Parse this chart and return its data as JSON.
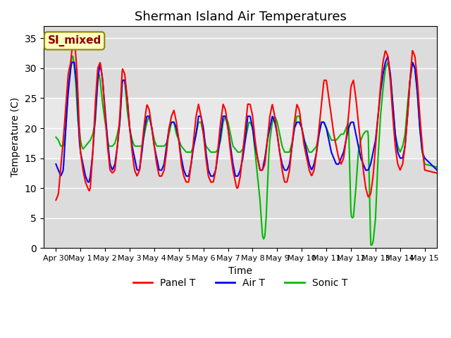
{
  "title": "Sherman Island Air Temperatures",
  "xlabel": "Time",
  "ylabel": "Temperature (C)",
  "ylim": [
    0,
    37
  ],
  "yticks": [
    0,
    5,
    10,
    15,
    20,
    25,
    30,
    35
  ],
  "xlim_start": -0.5,
  "xlim_end": 15.5,
  "xtick_labels": [
    "Apr 30",
    "May 1",
    "May 2",
    "May 3",
    "May 4",
    "May 5",
    "May 6",
    "May 7",
    "May 8",
    "May 9",
    "May 10",
    "May 11",
    "May 12",
    "May 13",
    "May 14",
    "May 15"
  ],
  "annotation_text": "SI_mixed",
  "annotation_color": "#8B0000",
  "annotation_bg": "#FFFFC0",
  "bg_band_y1": 15,
  "bg_band_y2": 25,
  "bg_band_color": "#E8E8E8",
  "panel_t_color": "#FF0000",
  "air_t_color": "#0000FF",
  "sonic_t_color": "#00BB00",
  "linewidth": 1.5,
  "panel_pts": [
    [
      0.0,
      8
    ],
    [
      0.1,
      9
    ],
    [
      0.3,
      18
    ],
    [
      0.5,
      29
    ],
    [
      0.6,
      31
    ],
    [
      0.65,
      33
    ],
    [
      0.75,
      35
    ],
    [
      0.85,
      30
    ],
    [
      0.95,
      20
    ],
    [
      1.0,
      16
    ],
    [
      1.1,
      13
    ],
    [
      1.2,
      11
    ],
    [
      1.3,
      10
    ],
    [
      1.35,
      9.5
    ],
    [
      1.4,
      10
    ],
    [
      1.5,
      16
    ],
    [
      1.6,
      24
    ],
    [
      1.7,
      30
    ],
    [
      1.8,
      31
    ],
    [
      1.9,
      28
    ],
    [
      2.0,
      22
    ],
    [
      2.1,
      17
    ],
    [
      2.15,
      15
    ],
    [
      2.2,
      13
    ],
    [
      2.3,
      12.5
    ],
    [
      2.4,
      13
    ],
    [
      2.5,
      17
    ],
    [
      2.6,
      22
    ],
    [
      2.7,
      30
    ],
    [
      2.8,
      29
    ],
    [
      2.9,
      25
    ],
    [
      3.0,
      20
    ],
    [
      3.1,
      16
    ],
    [
      3.2,
      13
    ],
    [
      3.3,
      12
    ],
    [
      3.4,
      13
    ],
    [
      3.5,
      17
    ],
    [
      3.6,
      21
    ],
    [
      3.7,
      24
    ],
    [
      3.8,
      23
    ],
    [
      3.9,
      20
    ],
    [
      4.0,
      17
    ],
    [
      4.1,
      14
    ],
    [
      4.2,
      12
    ],
    [
      4.3,
      12
    ],
    [
      4.4,
      13
    ],
    [
      4.5,
      16
    ],
    [
      4.6,
      20
    ],
    [
      4.7,
      22
    ],
    [
      4.8,
      23
    ],
    [
      4.9,
      21
    ],
    [
      5.0,
      18
    ],
    [
      5.1,
      14
    ],
    [
      5.2,
      12
    ],
    [
      5.3,
      11
    ],
    [
      5.4,
      11
    ],
    [
      5.5,
      14
    ],
    [
      5.6,
      18
    ],
    [
      5.7,
      22
    ],
    [
      5.8,
      24
    ],
    [
      5.9,
      22
    ],
    [
      6.0,
      19
    ],
    [
      6.1,
      15
    ],
    [
      6.2,
      12
    ],
    [
      6.3,
      11
    ],
    [
      6.4,
      11
    ],
    [
      6.5,
      13
    ],
    [
      6.6,
      17
    ],
    [
      6.7,
      21
    ],
    [
      6.8,
      24
    ],
    [
      6.9,
      23
    ],
    [
      7.0,
      20
    ],
    [
      7.1,
      16
    ],
    [
      7.2,
      13
    ],
    [
      7.3,
      11
    ],
    [
      7.35,
      10
    ],
    [
      7.4,
      10
    ],
    [
      7.5,
      12
    ],
    [
      7.6,
      16
    ],
    [
      7.7,
      20
    ],
    [
      7.8,
      24
    ],
    [
      7.9,
      24
    ],
    [
      8.0,
      22
    ],
    [
      8.1,
      18
    ],
    [
      8.2,
      15
    ],
    [
      8.3,
      13
    ],
    [
      8.4,
      13
    ],
    [
      8.5,
      14
    ],
    [
      8.6,
      18
    ],
    [
      8.7,
      22
    ],
    [
      8.8,
      24
    ],
    [
      8.9,
      22
    ],
    [
      9.0,
      19
    ],
    [
      9.1,
      16
    ],
    [
      9.2,
      13
    ],
    [
      9.3,
      11
    ],
    [
      9.4,
      11
    ],
    [
      9.5,
      13
    ],
    [
      9.6,
      17
    ],
    [
      9.7,
      21
    ],
    [
      9.8,
      24
    ],
    [
      9.9,
      23
    ],
    [
      10.0,
      20
    ],
    [
      10.1,
      17
    ],
    [
      10.2,
      15
    ],
    [
      10.3,
      13
    ],
    [
      10.4,
      12
    ],
    [
      10.5,
      13
    ],
    [
      10.6,
      16
    ],
    [
      10.7,
      20
    ],
    [
      10.8,
      24
    ],
    [
      10.9,
      28
    ],
    [
      11.0,
      28
    ],
    [
      11.1,
      25
    ],
    [
      11.2,
      22
    ],
    [
      11.3,
      19
    ],
    [
      11.4,
      17
    ],
    [
      11.5,
      15
    ],
    [
      11.6,
      14
    ],
    [
      11.7,
      15
    ],
    [
      11.8,
      18
    ],
    [
      11.9,
      22
    ],
    [
      12.0,
      27
    ],
    [
      12.1,
      28
    ],
    [
      12.2,
      25
    ],
    [
      12.3,
      21
    ],
    [
      12.4,
      17
    ],
    [
      12.5,
      13
    ],
    [
      12.6,
      10
    ],
    [
      12.7,
      8.5
    ],
    [
      12.8,
      9
    ],
    [
      12.9,
      12
    ],
    [
      13.0,
      17
    ],
    [
      13.1,
      22
    ],
    [
      13.2,
      27
    ],
    [
      13.3,
      31
    ],
    [
      13.4,
      33
    ],
    [
      13.5,
      32
    ],
    [
      13.6,
      28
    ],
    [
      13.7,
      22
    ],
    [
      13.8,
      17
    ],
    [
      13.9,
      14
    ],
    [
      14.0,
      13
    ],
    [
      14.1,
      14
    ],
    [
      14.2,
      17
    ],
    [
      14.3,
      22
    ],
    [
      14.4,
      28
    ],
    [
      14.5,
      33
    ],
    [
      14.6,
      32
    ],
    [
      14.7,
      28
    ],
    [
      14.8,
      22
    ],
    [
      14.9,
      17
    ],
    [
      15.0,
      13
    ],
    [
      15.5,
      12.5
    ]
  ],
  "air_pts": [
    [
      0.0,
      14
    ],
    [
      0.1,
      13
    ],
    [
      0.2,
      12
    ],
    [
      0.3,
      13
    ],
    [
      0.4,
      20
    ],
    [
      0.5,
      26
    ],
    [
      0.6,
      30
    ],
    [
      0.65,
      31
    ],
    [
      0.75,
      31
    ],
    [
      0.85,
      27
    ],
    [
      0.95,
      18
    ],
    [
      1.0,
      16
    ],
    [
      1.1,
      14
    ],
    [
      1.2,
      12
    ],
    [
      1.3,
      11
    ],
    [
      1.35,
      11
    ],
    [
      1.4,
      12
    ],
    [
      1.5,
      16
    ],
    [
      1.6,
      22
    ],
    [
      1.7,
      28
    ],
    [
      1.8,
      31
    ],
    [
      1.9,
      28
    ],
    [
      2.0,
      23
    ],
    [
      2.1,
      18
    ],
    [
      2.15,
      16
    ],
    [
      2.2,
      14
    ],
    [
      2.3,
      13
    ],
    [
      2.4,
      14
    ],
    [
      2.5,
      17
    ],
    [
      2.6,
      21
    ],
    [
      2.7,
      28
    ],
    [
      2.8,
      28
    ],
    [
      2.9,
      25
    ],
    [
      3.0,
      20
    ],
    [
      3.1,
      17
    ],
    [
      3.2,
      15
    ],
    [
      3.3,
      13
    ],
    [
      3.4,
      13
    ],
    [
      3.5,
      16
    ],
    [
      3.6,
      20
    ],
    [
      3.7,
      22
    ],
    [
      3.8,
      22
    ],
    [
      3.9,
      20
    ],
    [
      4.0,
      17
    ],
    [
      4.1,
      15
    ],
    [
      4.2,
      13
    ],
    [
      4.3,
      13
    ],
    [
      4.4,
      14
    ],
    [
      4.5,
      17
    ],
    [
      4.6,
      20
    ],
    [
      4.7,
      21
    ],
    [
      4.8,
      21
    ],
    [
      4.9,
      20
    ],
    [
      5.0,
      18
    ],
    [
      5.1,
      15
    ],
    [
      5.2,
      13
    ],
    [
      5.3,
      12
    ],
    [
      5.4,
      12
    ],
    [
      5.5,
      14
    ],
    [
      5.6,
      17
    ],
    [
      5.7,
      19
    ],
    [
      5.8,
      22
    ],
    [
      5.9,
      22
    ],
    [
      6.0,
      20
    ],
    [
      6.1,
      16
    ],
    [
      6.2,
      13
    ],
    [
      6.3,
      12
    ],
    [
      6.4,
      12
    ],
    [
      6.5,
      13
    ],
    [
      6.6,
      16
    ],
    [
      6.7,
      19
    ],
    [
      6.8,
      22
    ],
    [
      6.9,
      22
    ],
    [
      7.0,
      20
    ],
    [
      7.1,
      17
    ],
    [
      7.2,
      14
    ],
    [
      7.3,
      12
    ],
    [
      7.35,
      12
    ],
    [
      7.4,
      12
    ],
    [
      7.5,
      13
    ],
    [
      7.6,
      15
    ],
    [
      7.7,
      18
    ],
    [
      7.8,
      22
    ],
    [
      7.9,
      22
    ],
    [
      8.0,
      20
    ],
    [
      8.1,
      17
    ],
    [
      8.2,
      15
    ],
    [
      8.3,
      13
    ],
    [
      8.4,
      13
    ],
    [
      8.5,
      15
    ],
    [
      8.6,
      18
    ],
    [
      8.7,
      20
    ],
    [
      8.8,
      22
    ],
    [
      8.9,
      21
    ],
    [
      9.0,
      19
    ],
    [
      9.1,
      16
    ],
    [
      9.2,
      14
    ],
    [
      9.3,
      13
    ],
    [
      9.4,
      13
    ],
    [
      9.5,
      14
    ],
    [
      9.6,
      17
    ],
    [
      9.7,
      20
    ],
    [
      9.8,
      21
    ],
    [
      9.9,
      21
    ],
    [
      10.0,
      20
    ],
    [
      10.1,
      18
    ],
    [
      10.2,
      16
    ],
    [
      10.3,
      14
    ],
    [
      10.4,
      13
    ],
    [
      10.5,
      14
    ],
    [
      10.6,
      16
    ],
    [
      10.7,
      19
    ],
    [
      10.8,
      21
    ],
    [
      10.9,
      21
    ],
    [
      11.0,
      20
    ],
    [
      11.1,
      18
    ],
    [
      11.2,
      16
    ],
    [
      11.3,
      15
    ],
    [
      11.4,
      14
    ],
    [
      11.5,
      14
    ],
    [
      11.6,
      15
    ],
    [
      11.7,
      16
    ],
    [
      11.8,
      18
    ],
    [
      11.9,
      20
    ],
    [
      12.0,
      21
    ],
    [
      12.1,
      21
    ],
    [
      12.2,
      19
    ],
    [
      12.3,
      17
    ],
    [
      12.4,
      15
    ],
    [
      12.5,
      14
    ],
    [
      12.6,
      13
    ],
    [
      12.7,
      13
    ],
    [
      12.8,
      14
    ],
    [
      12.9,
      16
    ],
    [
      13.0,
      18
    ],
    [
      13.1,
      22
    ],
    [
      13.2,
      26
    ],
    [
      13.3,
      29
    ],
    [
      13.4,
      31
    ],
    [
      13.5,
      32
    ],
    [
      13.6,
      29
    ],
    [
      13.7,
      24
    ],
    [
      13.8,
      19
    ],
    [
      13.9,
      16
    ],
    [
      14.0,
      15
    ],
    [
      14.1,
      15
    ],
    [
      14.2,
      17
    ],
    [
      14.3,
      22
    ],
    [
      14.4,
      28
    ],
    [
      14.5,
      31
    ],
    [
      14.6,
      30
    ],
    [
      14.7,
      26
    ],
    [
      14.8,
      20
    ],
    [
      14.9,
      16
    ],
    [
      15.0,
      15
    ],
    [
      15.5,
      13
    ]
  ],
  "sonic_pts": [
    [
      0.0,
      18.5
    ],
    [
      0.1,
      18
    ],
    [
      0.2,
      17
    ],
    [
      0.3,
      17
    ],
    [
      0.35,
      18
    ],
    [
      0.4,
      20
    ],
    [
      0.5,
      27
    ],
    [
      0.6,
      30
    ],
    [
      0.65,
      32
    ],
    [
      0.7,
      32
    ],
    [
      0.8,
      28
    ],
    [
      0.9,
      21
    ],
    [
      0.95,
      20
    ],
    [
      1.0,
      18
    ],
    [
      1.05,
      17
    ],
    [
      1.1,
      16.5
    ],
    [
      1.2,
      17
    ],
    [
      1.3,
      17.5
    ],
    [
      1.4,
      18
    ],
    [
      1.5,
      19
    ],
    [
      1.6,
      21
    ],
    [
      1.7,
      28
    ],
    [
      1.75,
      29
    ],
    [
      1.8,
      28
    ],
    [
      1.9,
      24
    ],
    [
      2.0,
      21
    ],
    [
      2.05,
      20
    ],
    [
      2.1,
      18
    ],
    [
      2.15,
      17
    ],
    [
      2.2,
      17
    ],
    [
      2.3,
      17
    ],
    [
      2.4,
      17.5
    ],
    [
      2.5,
      19
    ],
    [
      2.6,
      21
    ],
    [
      2.7,
      28
    ],
    [
      2.8,
      28
    ],
    [
      2.9,
      23
    ],
    [
      3.0,
      20
    ],
    [
      3.1,
      18
    ],
    [
      3.2,
      17
    ],
    [
      3.3,
      17
    ],
    [
      3.4,
      17
    ],
    [
      3.5,
      17
    ],
    [
      3.6,
      19
    ],
    [
      3.7,
      21
    ],
    [
      3.8,
      22
    ],
    [
      3.9,
      20
    ],
    [
      4.0,
      18
    ],
    [
      4.1,
      17
    ],
    [
      4.2,
      17
    ],
    [
      4.3,
      17
    ],
    [
      4.4,
      17
    ],
    [
      4.5,
      17.5
    ],
    [
      4.6,
      19
    ],
    [
      4.7,
      21
    ],
    [
      4.8,
      21
    ],
    [
      4.9,
      19
    ],
    [
      5.0,
      18
    ],
    [
      5.1,
      17
    ],
    [
      5.2,
      16.5
    ],
    [
      5.3,
      16
    ],
    [
      5.4,
      16
    ],
    [
      5.5,
      16
    ],
    [
      5.6,
      17
    ],
    [
      5.7,
      19
    ],
    [
      5.8,
      21
    ],
    [
      5.9,
      21
    ],
    [
      6.0,
      19
    ],
    [
      6.1,
      17
    ],
    [
      6.2,
      16.5
    ],
    [
      6.3,
      16
    ],
    [
      6.4,
      16
    ],
    [
      6.5,
      16
    ],
    [
      6.6,
      16.5
    ],
    [
      6.7,
      18
    ],
    [
      6.8,
      21
    ],
    [
      6.9,
      22
    ],
    [
      7.0,
      21
    ],
    [
      7.1,
      19
    ],
    [
      7.2,
      17
    ],
    [
      7.3,
      16.5
    ],
    [
      7.4,
      16
    ],
    [
      7.5,
      16
    ],
    [
      7.6,
      16.5
    ],
    [
      7.7,
      18
    ],
    [
      7.8,
      20
    ],
    [
      7.85,
      21
    ],
    [
      7.9,
      21
    ],
    [
      8.0,
      20
    ],
    [
      8.05,
      18
    ],
    [
      8.1,
      16
    ],
    [
      8.15,
      14
    ],
    [
      8.2,
      12
    ],
    [
      8.25,
      10
    ],
    [
      8.3,
      8
    ],
    [
      8.35,
      5
    ],
    [
      8.4,
      2
    ],
    [
      8.45,
      1.5
    ],
    [
      8.5,
      2
    ],
    [
      8.55,
      5
    ],
    [
      8.6,
      10
    ],
    [
      8.65,
      15
    ],
    [
      8.7,
      18
    ],
    [
      8.8,
      21
    ],
    [
      8.9,
      22
    ],
    [
      9.0,
      21
    ],
    [
      9.1,
      19
    ],
    [
      9.2,
      17
    ],
    [
      9.3,
      16
    ],
    [
      9.4,
      16
    ],
    [
      9.5,
      16
    ],
    [
      9.6,
      17.5
    ],
    [
      9.7,
      20
    ],
    [
      9.8,
      22
    ],
    [
      9.9,
      22
    ],
    [
      10.0,
      20
    ],
    [
      10.1,
      18
    ],
    [
      10.2,
      17
    ],
    [
      10.3,
      16
    ],
    [
      10.4,
      16
    ],
    [
      10.5,
      16.5
    ],
    [
      10.6,
      17
    ],
    [
      10.7,
      19
    ],
    [
      10.8,
      21
    ],
    [
      10.9,
      21
    ],
    [
      11.0,
      20
    ],
    [
      11.1,
      19
    ],
    [
      11.2,
      18
    ],
    [
      11.3,
      18
    ],
    [
      11.4,
      18
    ],
    [
      11.5,
      18.5
    ],
    [
      11.6,
      19
    ],
    [
      11.7,
      19
    ],
    [
      11.8,
      20
    ],
    [
      11.9,
      21
    ],
    [
      12.0,
      5.5
    ],
    [
      12.05,
      5
    ],
    [
      12.1,
      5.2
    ],
    [
      12.2,
      10
    ],
    [
      12.3,
      16
    ],
    [
      12.4,
      18
    ],
    [
      12.5,
      19
    ],
    [
      12.6,
      19.5
    ],
    [
      12.7,
      19.5
    ],
    [
      12.8,
      0.5
    ],
    [
      12.85,
      0.5
    ],
    [
      12.9,
      1
    ],
    [
      13.0,
      5
    ],
    [
      13.1,
      15
    ],
    [
      13.2,
      22
    ],
    [
      13.3,
      26.5
    ],
    [
      13.4,
      30
    ],
    [
      13.5,
      31
    ],
    [
      13.6,
      29
    ],
    [
      13.7,
      24
    ],
    [
      13.8,
      19
    ],
    [
      13.9,
      17
    ],
    [
      14.0,
      16
    ],
    [
      14.1,
      17
    ],
    [
      14.2,
      19
    ],
    [
      14.3,
      24
    ],
    [
      14.4,
      28
    ],
    [
      14.5,
      31
    ],
    [
      14.6,
      30
    ],
    [
      14.7,
      26
    ],
    [
      14.8,
      20
    ],
    [
      14.9,
      16
    ],
    [
      15.0,
      14
    ],
    [
      15.5,
      13.5
    ]
  ]
}
